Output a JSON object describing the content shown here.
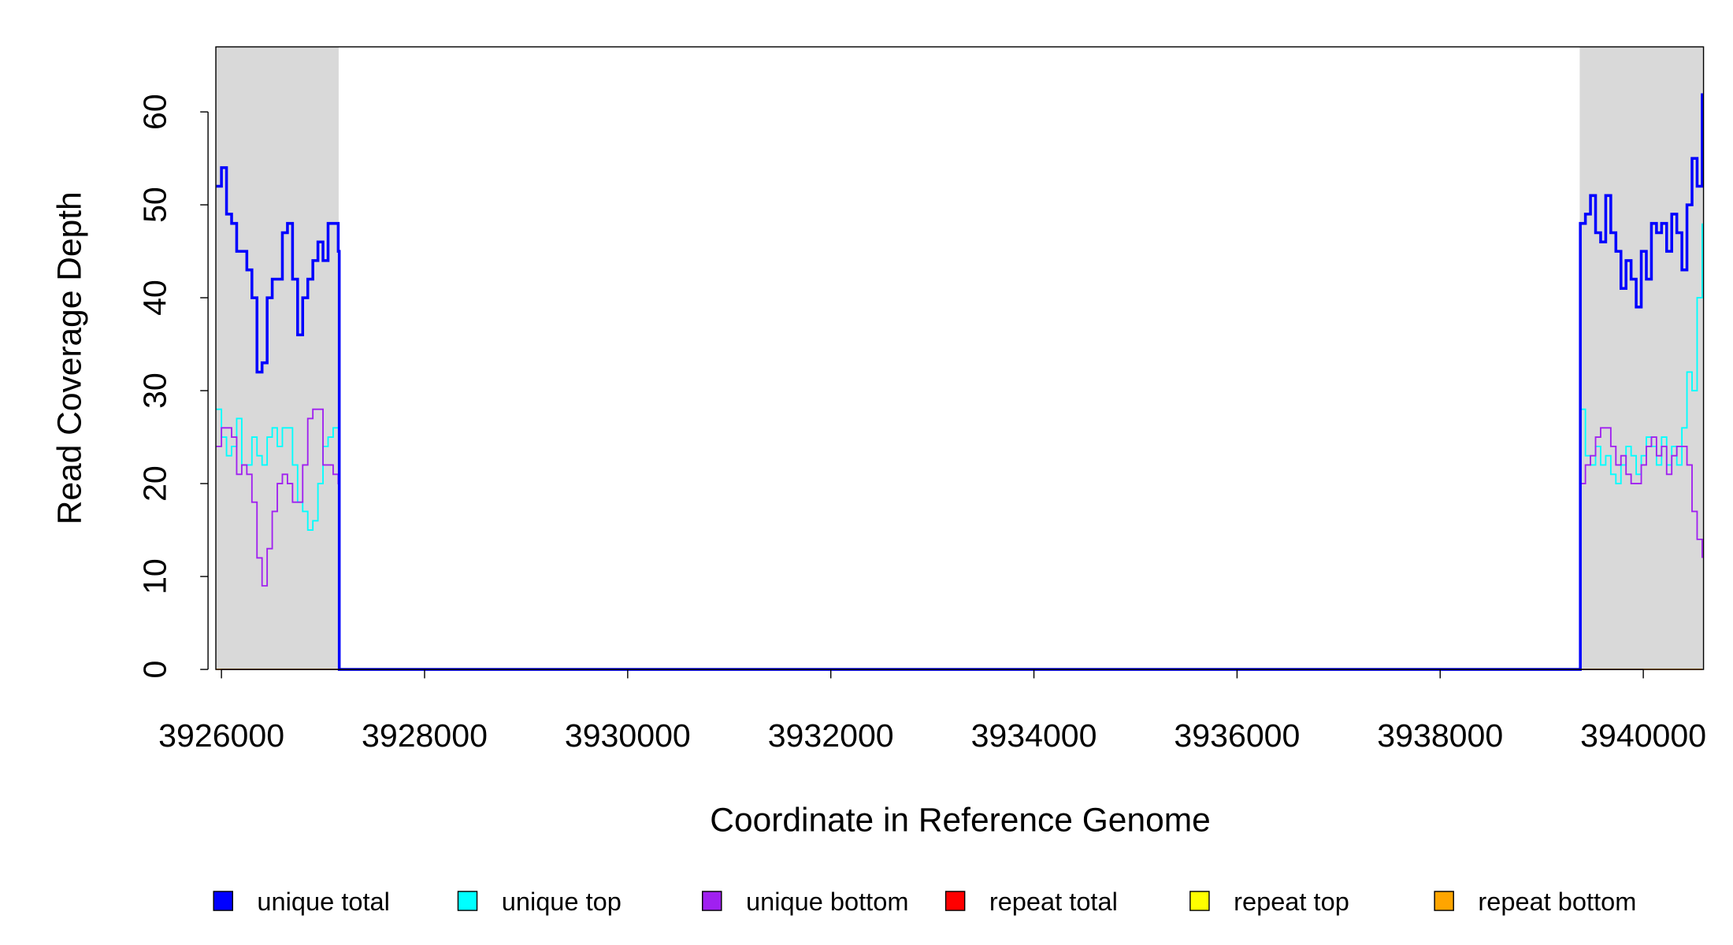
{
  "chart_data": {
    "type": "line",
    "step": true,
    "xlabel": "Coordinate in Reference Genome",
    "ylabel": "Read Coverage Depth",
    "xlim": [
      3925945,
      3940593
    ],
    "ylim": [
      0,
      67
    ],
    "xticks": [
      3926000,
      3928000,
      3930000,
      3932000,
      3934000,
      3936000,
      3938000,
      3940000
    ],
    "yticks": [
      0,
      10,
      20,
      30,
      40,
      50,
      60
    ],
    "shaded_regions": [
      [
        3925945,
        3927154
      ],
      [
        3939374,
        3940593
      ]
    ],
    "shade_color": "#d9d9d9",
    "x": [
      3925950,
      3926000,
      3926050,
      3926100,
      3926150,
      3926200,
      3926250,
      3926300,
      3926350,
      3926400,
      3926450,
      3926500,
      3926550,
      3926600,
      3926650,
      3926700,
      3926750,
      3926800,
      3926850,
      3926900,
      3926950,
      3927000,
      3927050,
      3927100,
      3927150,
      3927160,
      3939370,
      3939380,
      3939430,
      3939480,
      3939530,
      3939580,
      3939630,
      3939680,
      3939730,
      3939780,
      3939830,
      3939880,
      3939930,
      3939980,
      3940030,
      3940080,
      3940130,
      3940180,
      3940230,
      3940280,
      3940330,
      3940380,
      3940430,
      3940480,
      3940530,
      3940580
    ],
    "series": [
      {
        "name": "repeat total",
        "color": "#ff0000",
        "values": [
          0,
          0,
          0,
          0,
          0,
          0,
          0,
          0,
          0,
          0,
          0,
          0,
          0,
          0,
          0,
          0,
          0,
          0,
          0,
          0,
          0,
          0,
          0,
          0,
          0,
          0,
          0,
          0,
          0,
          0,
          0,
          0,
          0,
          0,
          0,
          0,
          0,
          0,
          0,
          0,
          0,
          0,
          0,
          0,
          0,
          0,
          0,
          0,
          0,
          0,
          0,
          0
        ]
      },
      {
        "name": "repeat top",
        "color": "#ffff00",
        "values": [
          0,
          0,
          0,
          0,
          0,
          0,
          0,
          0,
          0,
          0,
          0,
          0,
          0,
          0,
          0,
          0,
          0,
          0,
          0,
          0,
          0,
          0,
          0,
          0,
          0,
          0,
          0,
          0,
          0,
          0,
          0,
          0,
          0,
          0,
          0,
          0,
          0,
          0,
          0,
          0,
          0,
          0,
          0,
          0,
          0,
          0,
          0,
          0,
          0,
          0,
          0,
          0
        ]
      },
      {
        "name": "repeat bottom",
        "color": "#ffa500",
        "values": [
          0,
          0,
          0,
          0,
          0,
          0,
          0,
          0,
          0,
          0,
          0,
          0,
          0,
          0,
          0,
          0,
          0,
          0,
          0,
          0,
          0,
          0,
          0,
          0,
          0,
          0,
          0,
          0,
          0,
          0,
          0,
          0,
          0,
          0,
          0,
          0,
          0,
          0,
          0,
          0,
          0,
          0,
          0,
          0,
          0,
          0,
          0,
          0,
          0,
          0,
          0,
          0
        ]
      },
      {
        "name": "unique top",
        "color": "#00ffff",
        "values": [
          28,
          25,
          23,
          24,
          27,
          22,
          22,
          25,
          23,
          22,
          25,
          26,
          24,
          26,
          26,
          22,
          18,
          17,
          15,
          16,
          20,
          24,
          25,
          26,
          26,
          0,
          0,
          28,
          23,
          22,
          24,
          22,
          23,
          21,
          20,
          22,
          24,
          23,
          21,
          23,
          25,
          24,
          22,
          25,
          22,
          24,
          22,
          26,
          32,
          30,
          40,
          48
        ]
      },
      {
        "name": "unique bottom",
        "color": "#a020f0",
        "values": [
          24,
          26,
          26,
          25,
          21,
          22,
          21,
          18,
          12,
          9,
          13,
          17,
          20,
          21,
          20,
          18,
          18,
          22,
          27,
          28,
          28,
          22,
          22,
          21,
          20,
          0,
          0,
          20,
          22,
          23,
          25,
          26,
          26,
          24,
          22,
          23,
          21,
          20,
          20,
          22,
          24,
          25,
          23,
          24,
          21,
          23,
          24,
          24,
          22,
          17,
          14,
          12
        ]
      },
      {
        "name": "unique total",
        "color": "#0000ff",
        "values": [
          52,
          54,
          49,
          48,
          45,
          45,
          43,
          40,
          32,
          33,
          40,
          42,
          42,
          47,
          48,
          42,
          36,
          40,
          42,
          44,
          46,
          44,
          48,
          48,
          45,
          0,
          0,
          48,
          49,
          51,
          47,
          46,
          51,
          47,
          45,
          41,
          44,
          42,
          39,
          45,
          42,
          48,
          47,
          48,
          45,
          49,
          47,
          43,
          50,
          55,
          52,
          62
        ]
      }
    ],
    "legend_order": [
      5,
      3,
      4,
      0,
      1,
      2
    ]
  }
}
